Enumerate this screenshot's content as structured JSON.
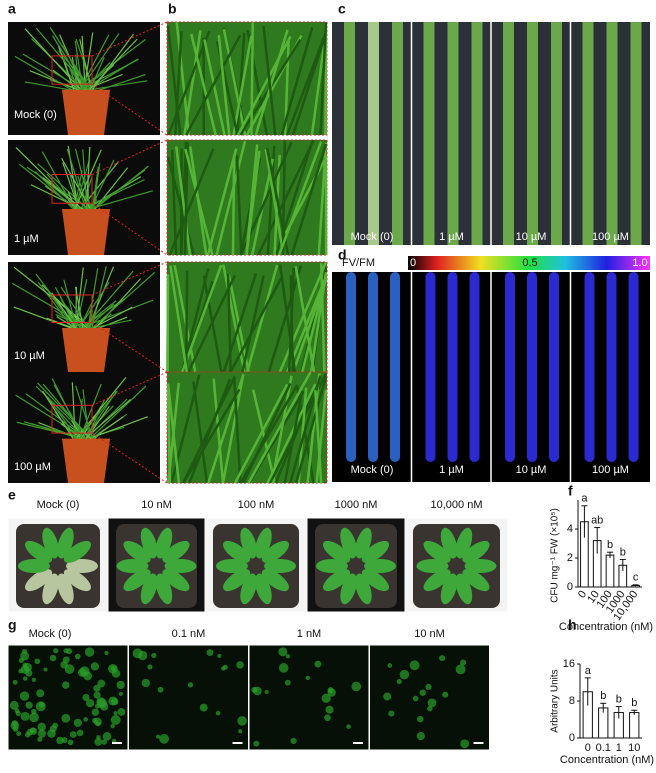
{
  "panels": {
    "a": {
      "label": "a",
      "images": [
        "Mock (0)",
        "1 µM",
        "10 µM",
        "100 µM"
      ]
    },
    "b": {
      "label": "b"
    },
    "c": {
      "label": "c",
      "images": [
        "Mock (0)",
        "1 µM",
        "10 µM",
        "100 µM"
      ]
    },
    "d": {
      "label": "d",
      "colorbar_label": "FV/FM",
      "colorbar_ticks": [
        "0",
        "0.5",
        "1.0"
      ],
      "images": [
        "Mock (0)",
        "1 µM",
        "10 µM",
        "100 µM"
      ]
    },
    "e": {
      "label": "e",
      "images": [
        "Mock (0)",
        "10 nM",
        "100 nM",
        "1000 nM",
        "10,000 nM"
      ]
    },
    "g": {
      "label": "g",
      "images": [
        "Mock (0)",
        "0.1 nM",
        "1 nM",
        "10 nM"
      ]
    }
  },
  "chart_data": [
    {
      "type": "bar",
      "label": "f",
      "ylabel": "CFU mg⁻¹ FW (×10⁵)",
      "xlabel": "Concentration (nM)",
      "categories": [
        "0",
        "10",
        "100",
        "1000",
        "10,000"
      ],
      "values": [
        4.5,
        3.2,
        2.2,
        1.5,
        0.1
      ],
      "errors": [
        1.1,
        0.9,
        0.2,
        0.4,
        0.05
      ],
      "annotations": [
        "a",
        "ab",
        "b",
        "b",
        "c"
      ],
      "ylim": [
        0,
        6
      ],
      "yticks": [
        0,
        2,
        4
      ],
      "color": "#ffffff"
    },
    {
      "type": "bar",
      "label": "h",
      "ylabel": "Arbitrary Units",
      "xlabel": "Concentration (nM)",
      "categories": [
        "0",
        "0.1",
        "1",
        "10"
      ],
      "values": [
        10,
        6.5,
        5.5,
        5.5
      ],
      "errors": [
        3,
        1,
        1.3,
        0.5
      ],
      "annotations": [
        "a",
        "b",
        "b",
        "b"
      ],
      "ylim": [
        0,
        16
      ],
      "yticks": [
        0,
        8,
        16
      ],
      "color": "#ffffff"
    }
  ]
}
